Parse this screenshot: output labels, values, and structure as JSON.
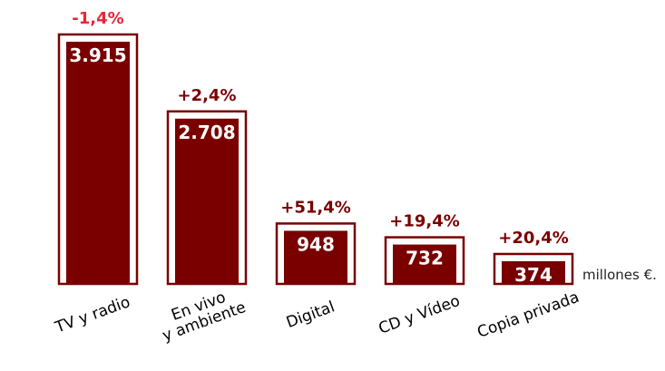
{
  "chart_data": {
    "type": "bar",
    "categories": [
      "TV y radio",
      "En vivo\ny ambiente",
      "Digital",
      "CD y Vídeo",
      "Copia privada"
    ],
    "values": [
      3915,
      2708,
      948,
      732,
      374
    ],
    "value_labels": [
      "3.915",
      "2.708",
      "948",
      "732",
      "374"
    ],
    "changes": [
      "-1,4%",
      "+2,4%",
      "+51,4%",
      "+19,4%",
      "+20,4%"
    ],
    "change_colors": [
      "#e8253a",
      "#7a0000",
      "#7a0000",
      "#7a0000",
      "#7a0000"
    ],
    "unit": "millones €.",
    "bar_color": "#7a0000",
    "ylim": [
      0,
      3915
    ]
  }
}
